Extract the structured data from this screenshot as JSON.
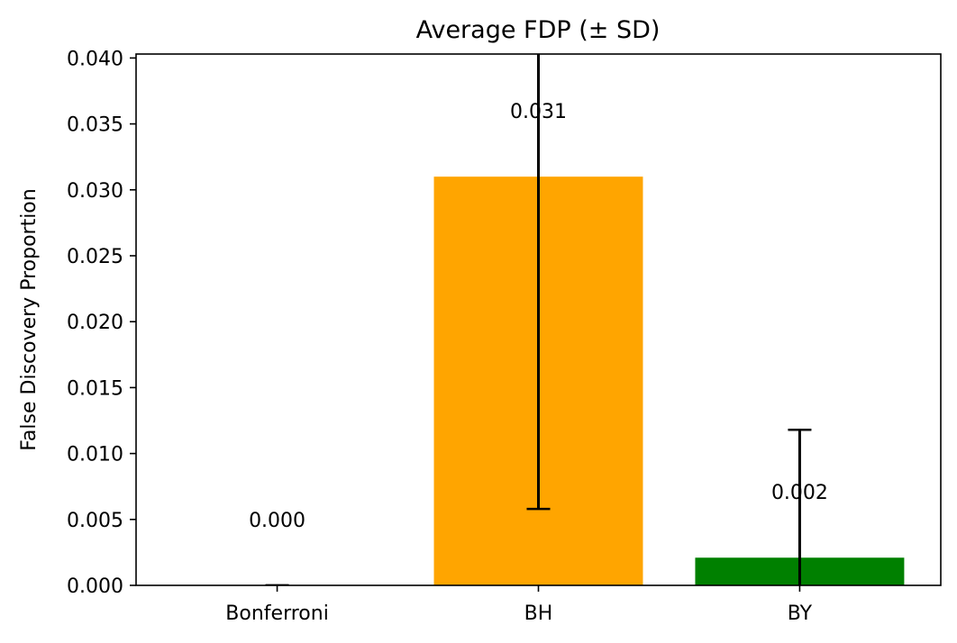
{
  "chart_data": {
    "type": "bar",
    "title": "Average FDP (± SD)",
    "xlabel": "",
    "ylabel": "False Discovery Proportion",
    "categories": [
      "Bonferroni",
      "BH",
      "BY"
    ],
    "values": [
      0.0,
      0.031,
      0.0021
    ],
    "sd": [
      0.0,
      0.0252,
      0.0097
    ],
    "data_labels": [
      "0.000",
      "0.031",
      "0.002"
    ],
    "colors": [
      "#1f77b4",
      "#ffa500",
      "#008000"
    ],
    "ylim": [
      0,
      0.0403
    ],
    "yticks": [
      0,
      0.005,
      0.01,
      0.015,
      0.02,
      0.025,
      0.03,
      0.035,
      0.04
    ],
    "ytick_labels": [
      "0.000",
      "0.005",
      "0.010",
      "0.015",
      "0.020",
      "0.025",
      "0.030",
      "0.035",
      "0.040"
    ],
    "grid": false,
    "legend": "none"
  }
}
